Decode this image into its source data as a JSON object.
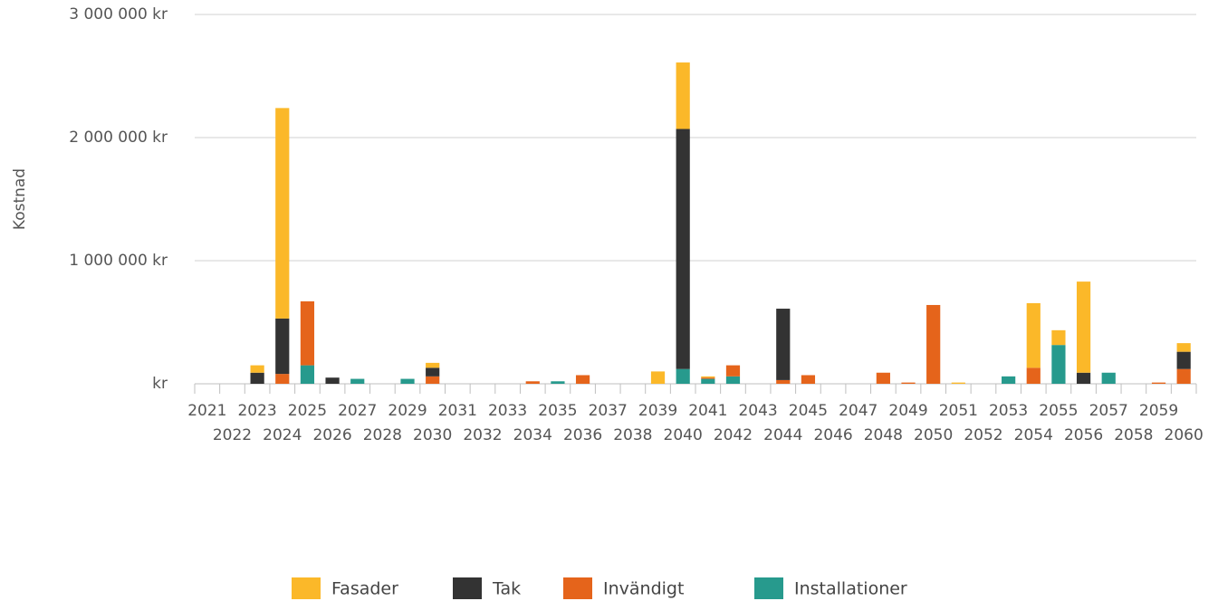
{
  "chart_data": {
    "type": "stacked_bar",
    "ylabel": "Kostnad",
    "categories": [
      "2021",
      "2022",
      "2023",
      "2024",
      "2025",
      "2026",
      "2027",
      "2028",
      "2029",
      "2030",
      "2031",
      "2032",
      "2033",
      "2034",
      "2035",
      "2036",
      "2037",
      "2038",
      "2039",
      "2040",
      "2041",
      "2042",
      "2043",
      "2044",
      "2045",
      "2046",
      "2047",
      "2048",
      "2049",
      "2050",
      "2051",
      "2052",
      "2053",
      "2054",
      "2055",
      "2056",
      "2057",
      "2058",
      "2059",
      "2060"
    ],
    "series": [
      {
        "name": "Fasader",
        "color": "#fbb829",
        "values": [
          0,
          0,
          60000,
          1710000,
          0,
          0,
          0,
          0,
          0,
          40000,
          0,
          0,
          0,
          0,
          0,
          0,
          0,
          0,
          100000,
          540000,
          10000,
          0,
          0,
          0,
          0,
          0,
          0,
          0,
          0,
          0,
          10000,
          0,
          0,
          525000,
          120000,
          740000,
          0,
          0,
          0,
          70000
        ]
      },
      {
        "name": "Tak",
        "color": "#333333",
        "values": [
          0,
          0,
          90000,
          450000,
          0,
          50000,
          0,
          0,
          0,
          70000,
          0,
          0,
          0,
          0,
          0,
          0,
          0,
          0,
          0,
          1950000,
          0,
          0,
          0,
          580000,
          0,
          0,
          0,
          0,
          0,
          0,
          0,
          0,
          0,
          0,
          0,
          90000,
          0,
          0,
          0,
          140000
        ]
      },
      {
        "name": "Invändigt",
        "color": "#e5641b",
        "values": [
          0,
          0,
          0,
          80000,
          520000,
          0,
          0,
          0,
          0,
          60000,
          0,
          0,
          0,
          20000,
          0,
          70000,
          0,
          0,
          0,
          0,
          10000,
          90000,
          0,
          30000,
          70000,
          0,
          0,
          90000,
          10000,
          640000,
          0,
          0,
          0,
          130000,
          0,
          0,
          0,
          0,
          10000,
          120000
        ]
      },
      {
        "name": "Installationer",
        "color": "#279a8d",
        "values": [
          0,
          0,
          0,
          0,
          150000,
          0,
          40000,
          0,
          40000,
          0,
          0,
          0,
          0,
          0,
          20000,
          0,
          0,
          0,
          0,
          120000,
          40000,
          60000,
          0,
          0,
          0,
          0,
          0,
          0,
          0,
          0,
          0,
          0,
          60000,
          0,
          315000,
          0,
          90000,
          0,
          0,
          0
        ]
      }
    ],
    "ylim": [
      0,
      3000000
    ],
    "yticks": [
      {
        "value": 0,
        "label": "kr"
      },
      {
        "value": 1000000,
        "label": "1 000 000 kr"
      },
      {
        "value": 2000000,
        "label": "2 000 000 kr"
      },
      {
        "value": 3000000,
        "label": "3 000 000 kr"
      }
    ],
    "grid": true,
    "legend": "bottom"
  }
}
